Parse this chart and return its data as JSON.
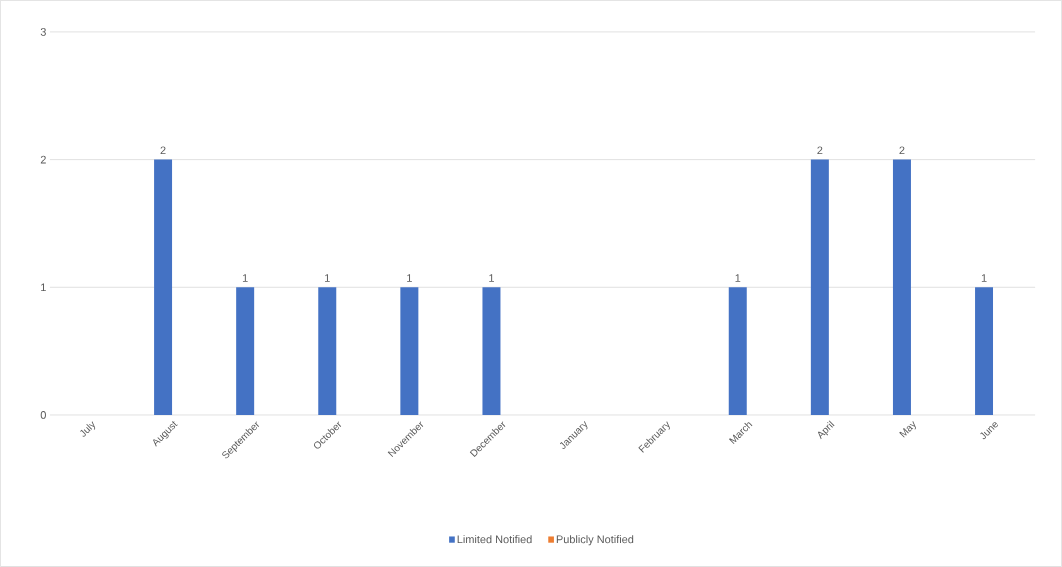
{
  "chart_data": {
    "type": "bar",
    "categories": [
      "July",
      "August",
      "September",
      "October",
      "November",
      "December",
      "January",
      "February",
      "March",
      "April",
      "May",
      "June"
    ],
    "series": [
      {
        "name": "Limited Notified",
        "color": "#4472c4",
        "values": [
          null,
          2,
          1,
          1,
          1,
          1,
          null,
          null,
          1,
          2,
          2,
          1
        ],
        "value_labels": [
          null,
          "2",
          "1",
          "1",
          "1",
          "1",
          null,
          null,
          "1",
          "2",
          "2",
          "1"
        ]
      },
      {
        "name": "Publicly Notified",
        "color": "#ed7d31",
        "values": [
          null,
          null,
          null,
          null,
          null,
          null,
          null,
          null,
          null,
          null,
          null,
          null
        ]
      }
    ],
    "ylim": [
      0,
      3
    ],
    "yticks": [
      0,
      1,
      2,
      3
    ],
    "grid": "y",
    "legend": "bottom"
  }
}
